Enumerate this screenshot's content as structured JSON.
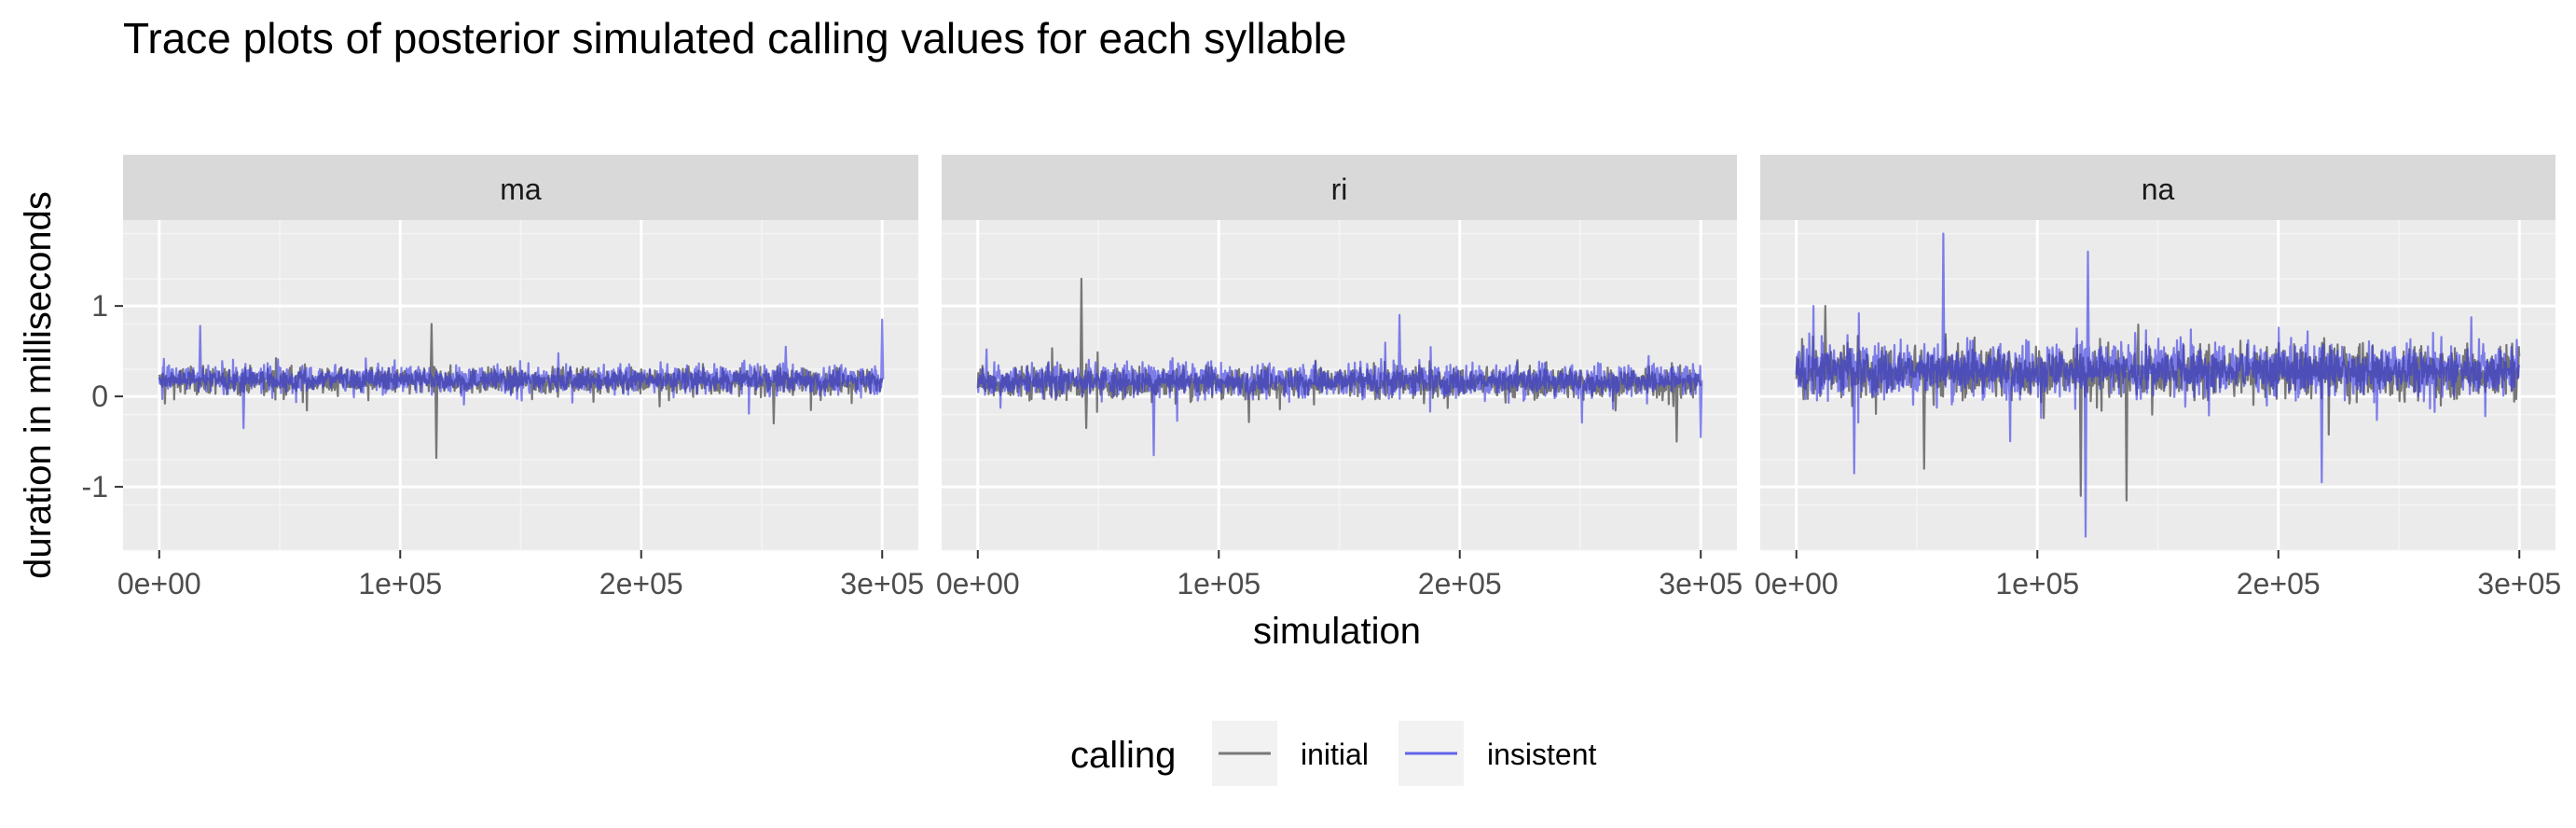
{
  "chart_data": {
    "type": "line",
    "title": "Trace plots of posterior simulated calling values for each syllable",
    "xlabel": "simulation",
    "ylabel": "duration in milliseconds",
    "xlim": [
      -15000,
      315000
    ],
    "ylim": [
      -1.7,
      1.95
    ],
    "x_ticks": [
      0,
      100000,
      200000,
      300000
    ],
    "x_tick_labels": [
      "0e+00",
      "1e+05",
      "2e+05",
      "3e+05"
    ],
    "y_ticks": [
      -1,
      0,
      1
    ],
    "y_tick_labels": [
      "-1",
      "0",
      "1"
    ],
    "grid": true,
    "legend": {
      "title": "calling",
      "position": "bottom",
      "entries": [
        {
          "label": "initial",
          "color": "#595959"
        },
        {
          "label": "insistent",
          "color": "#3333e6"
        }
      ]
    },
    "facets": [
      {
        "label": "ma",
        "series": [
          {
            "name": "initial",
            "center": 0.17,
            "spread": 0.1,
            "extremes": [
              [
                113000,
                0.8
              ],
              [
                115000,
                -0.68
              ],
              [
                255000,
                -0.3
              ]
            ]
          },
          {
            "name": "insistent",
            "center": 0.19,
            "spread": 0.11,
            "extremes": [
              [
                17000,
                0.78
              ],
              [
                300000,
                0.85
              ],
              [
                35000,
                -0.35
              ],
              [
                260000,
                0.55
              ]
            ]
          }
        ]
      },
      {
        "label": "ri",
        "series": [
          {
            "name": "initial",
            "center": 0.15,
            "spread": 0.12,
            "extremes": [
              [
                43000,
                1.3
              ],
              [
                45000,
                -0.35
              ],
              [
                290000,
                -0.5
              ]
            ]
          },
          {
            "name": "insistent",
            "center": 0.18,
            "spread": 0.13,
            "extremes": [
              [
                73000,
                -0.65
              ],
              [
                175000,
                0.9
              ],
              [
                300000,
                -0.45
              ]
            ]
          }
        ]
      },
      {
        "label": "na",
        "series": [
          {
            "name": "initial",
            "center": 0.27,
            "spread": 0.2,
            "extremes": [
              [
                118000,
                -1.1
              ],
              [
                137000,
                -1.15
              ],
              [
                53000,
                -0.8
              ],
              [
                12000,
                1.0
              ]
            ]
          },
          {
            "name": "insistent",
            "center": 0.3,
            "spread": 0.22,
            "extremes": [
              [
                61000,
                1.8
              ],
              [
                121000,
                1.6
              ],
              [
                120000,
                -1.55
              ],
              [
                24000,
                -0.85
              ],
              [
                218000,
                -0.95
              ]
            ]
          }
        ]
      }
    ]
  }
}
